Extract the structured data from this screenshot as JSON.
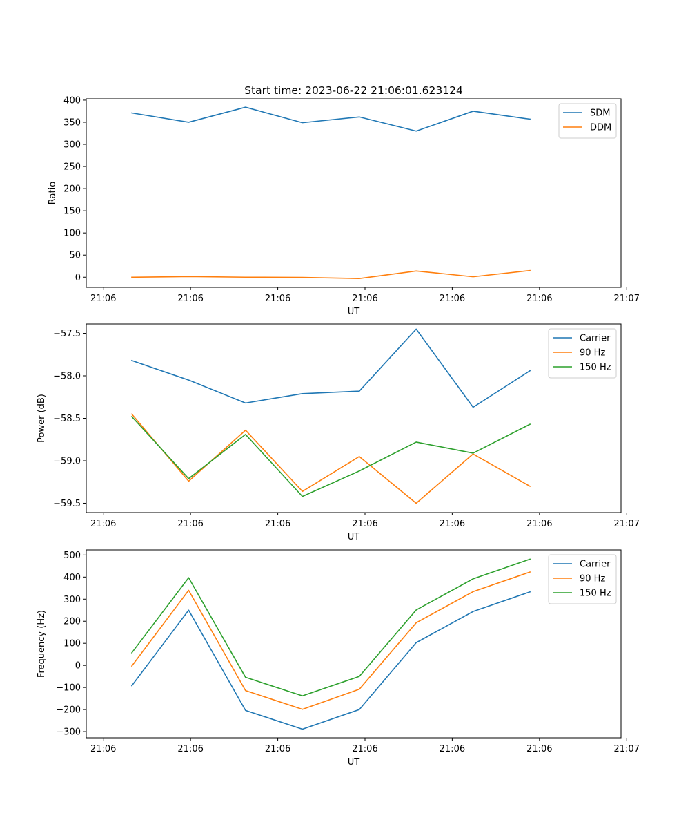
{
  "chart_data": [
    {
      "type": "line",
      "title": "Start time: 2023-06-22 21:06:01.623124",
      "xlabel": "UT",
      "ylabel": "Ratio",
      "x": [
        1,
        2,
        3,
        4,
        5,
        6,
        7,
        8
      ],
      "xlim": [
        0.2,
        9.6
      ],
      "xticks": [
        0.5,
        2.033,
        3.567,
        5.1,
        6.633,
        8.167,
        9.7
      ],
      "xtick_labels": [
        "21:06",
        "21:06",
        "21:06",
        "21:06",
        "21:06",
        "21:06",
        "21:07"
      ],
      "ylim": [
        -23,
        403
      ],
      "yticks": [
        0,
        50,
        100,
        150,
        200,
        250,
        300,
        350,
        400
      ],
      "ytick_labels": [
        "0",
        "50",
        "100",
        "150",
        "200",
        "250",
        "300",
        "350",
        "400"
      ],
      "legend": "top-right",
      "grid": false,
      "series": [
        {
          "name": "SDM",
          "color": "#1f77b4",
          "values": [
            371,
            350,
            384,
            349,
            362,
            330,
            375,
            357
          ]
        },
        {
          "name": "DDM",
          "color": "#ff7f0e",
          "values": [
            0,
            1.5,
            0,
            -0.5,
            -3,
            14,
            1,
            15
          ]
        }
      ]
    },
    {
      "type": "line",
      "xlabel": "UT",
      "ylabel": "Power (dB)",
      "x": [
        1,
        2,
        3,
        4,
        5,
        6,
        7,
        8
      ],
      "xlim": [
        0.2,
        9.6
      ],
      "xticks": [
        0.5,
        2.033,
        3.567,
        5.1,
        6.633,
        8.167,
        9.7
      ],
      "xtick_labels": [
        "21:06",
        "21:06",
        "21:06",
        "21:06",
        "21:06",
        "21:06",
        "21:07"
      ],
      "ylim": [
        -59.61,
        -57.39
      ],
      "yticks": [
        -57.5,
        -58.0,
        -58.5,
        -59.0,
        -59.5
      ],
      "ytick_labels": [
        "−57.5",
        "−58.0",
        "−58.5",
        "−59.0",
        "−59.5"
      ],
      "legend": "top-right",
      "grid": false,
      "series": [
        {
          "name": "Carrier",
          "color": "#1f77b4",
          "values": [
            -57.82,
            -58.05,
            -58.32,
            -58.21,
            -58.18,
            -57.45,
            -58.37,
            -57.94
          ]
        },
        {
          "name": "90 Hz",
          "color": "#ff7f0e",
          "values": [
            -58.45,
            -59.24,
            -58.64,
            -59.36,
            -58.95,
            -59.5,
            -58.92,
            -59.3
          ]
        },
        {
          "name": "150 Hz",
          "color": "#2ca02c",
          "values": [
            -58.48,
            -59.21,
            -58.69,
            -59.42,
            -59.12,
            -58.78,
            -58.91,
            -58.57
          ]
        }
      ]
    },
    {
      "type": "line",
      "xlabel": "UT",
      "ylabel": "Frequency (Hz)",
      "x": [
        1,
        2,
        3,
        4,
        5,
        6,
        7,
        8
      ],
      "xlim": [
        0.2,
        9.6
      ],
      "xticks": [
        0.5,
        2.033,
        3.567,
        5.1,
        6.633,
        8.167,
        9.7
      ],
      "xtick_labels": [
        "21:06",
        "21:06",
        "21:06",
        "21:06",
        "21:06",
        "21:06",
        "21:07"
      ],
      "ylim": [
        -328,
        523
      ],
      "yticks": [
        -300,
        -200,
        -100,
        0,
        100,
        200,
        300,
        400,
        500
      ],
      "ytick_labels": [
        "−300",
        "−200",
        "−100",
        "0",
        "100",
        "200",
        "300",
        "400",
        "500"
      ],
      "legend": "top-right",
      "grid": false,
      "series": [
        {
          "name": "Carrier",
          "color": "#1f77b4",
          "values": [
            -92,
            250,
            -204,
            -289,
            -200,
            103,
            244,
            333
          ]
        },
        {
          "name": "90 Hz",
          "color": "#ff7f0e",
          "values": [
            -3,
            340,
            -114,
            -199,
            -108,
            193,
            334,
            423
          ]
        },
        {
          "name": "150 Hz",
          "color": "#2ca02c",
          "values": [
            57,
            397,
            -54,
            -138,
            -50,
            251,
            392,
            481
          ]
        }
      ]
    }
  ]
}
